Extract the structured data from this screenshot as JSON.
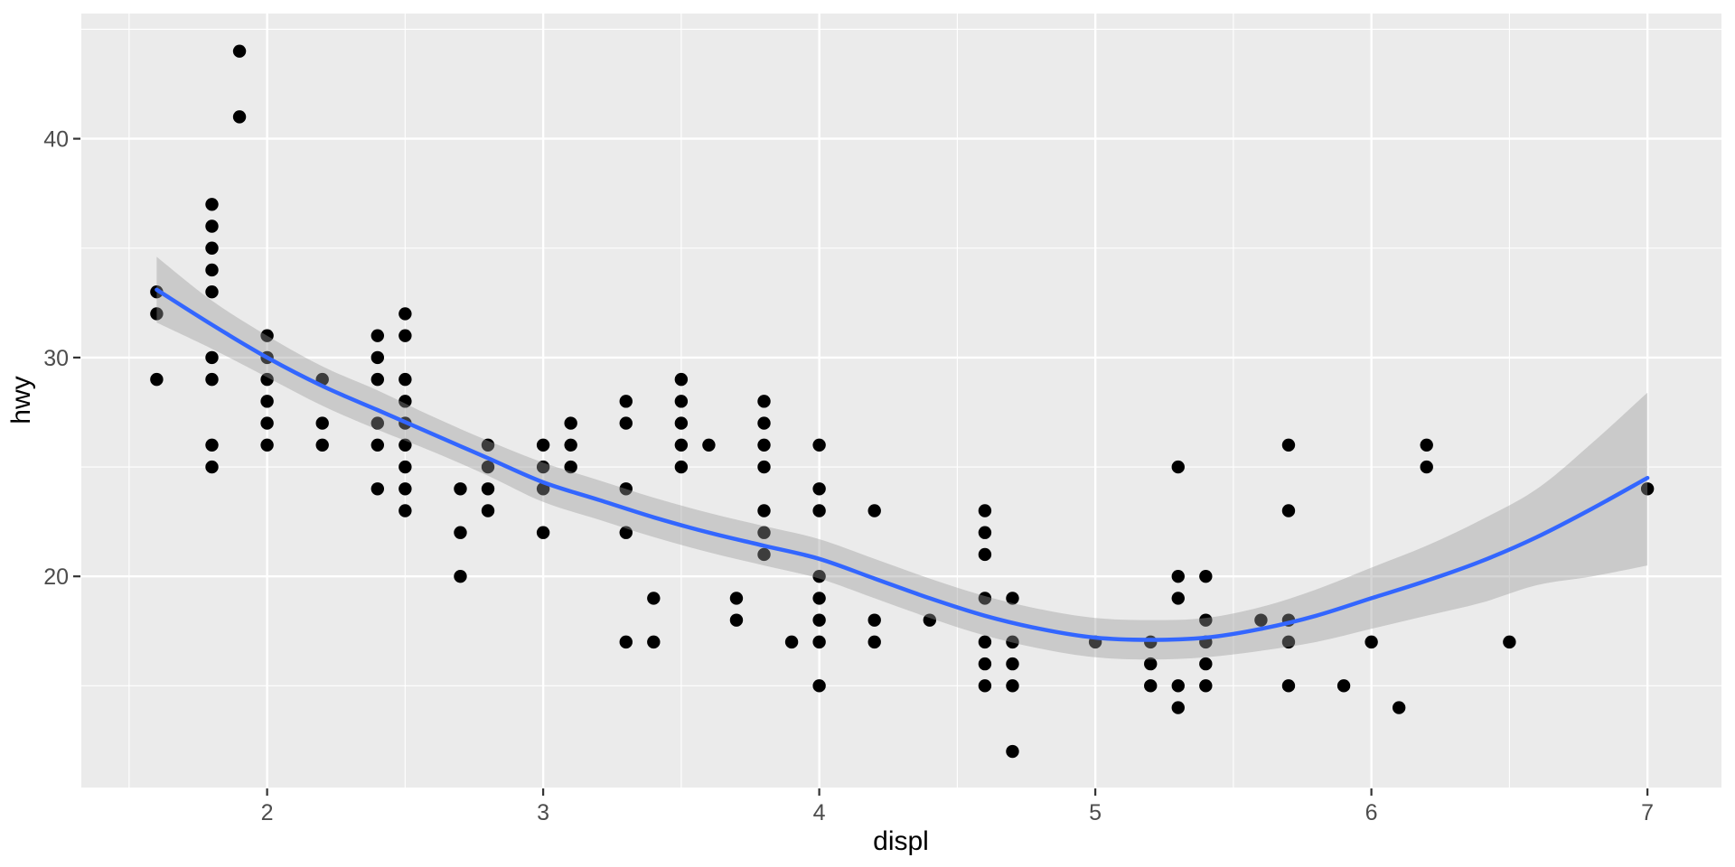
{
  "chart_data": {
    "type": "scatter",
    "title": "",
    "xlabel": "displ",
    "ylabel": "hwy",
    "x_ticks": [
      2,
      3,
      4,
      5,
      6,
      7
    ],
    "y_ticks": [
      20,
      30,
      40
    ],
    "x_minor_ticks": [
      1.5,
      2.5,
      3.5,
      4.5,
      5.5,
      6.5
    ],
    "y_minor_ticks": [
      15,
      25,
      35,
      45
    ],
    "xlim": [
      1.327,
      7.268
    ],
    "ylim": [
      10.35,
      45.72
    ],
    "grid": "on",
    "legend": "none",
    "points": [
      [
        1.6,
        33
      ],
      [
        1.6,
        32
      ],
      [
        1.6,
        29
      ],
      [
        1.8,
        37
      ],
      [
        1.8,
        36
      ],
      [
        1.8,
        35
      ],
      [
        1.8,
        34
      ],
      [
        1.8,
        33
      ],
      [
        1.8,
        30
      ],
      [
        1.8,
        29
      ],
      [
        1.8,
        26
      ],
      [
        1.8,
        25
      ],
      [
        1.9,
        44
      ],
      [
        1.9,
        41
      ],
      [
        2.0,
        31
      ],
      [
        2.0,
        30
      ],
      [
        2.0,
        29
      ],
      [
        2.0,
        28
      ],
      [
        2.0,
        27
      ],
      [
        2.0,
        26
      ],
      [
        2.2,
        29
      ],
      [
        2.2,
        27
      ],
      [
        2.2,
        26
      ],
      [
        2.4,
        31
      ],
      [
        2.4,
        30
      ],
      [
        2.4,
        29
      ],
      [
        2.4,
        27
      ],
      [
        2.4,
        26
      ],
      [
        2.4,
        24
      ],
      [
        2.5,
        32
      ],
      [
        2.5,
        31
      ],
      [
        2.5,
        29
      ],
      [
        2.5,
        28
      ],
      [
        2.5,
        27
      ],
      [
        2.5,
        26
      ],
      [
        2.5,
        25
      ],
      [
        2.5,
        24
      ],
      [
        2.5,
        23
      ],
      [
        2.7,
        24
      ],
      [
        2.7,
        22
      ],
      [
        2.7,
        20
      ],
      [
        2.8,
        26
      ],
      [
        2.8,
        25
      ],
      [
        2.8,
        24
      ],
      [
        2.8,
        23
      ],
      [
        3.0,
        26
      ],
      [
        3.0,
        25
      ],
      [
        3.0,
        24
      ],
      [
        3.0,
        22
      ],
      [
        3.1,
        27
      ],
      [
        3.1,
        26
      ],
      [
        3.1,
        25
      ],
      [
        3.3,
        28
      ],
      [
        3.3,
        27
      ],
      [
        3.3,
        24
      ],
      [
        3.3,
        22
      ],
      [
        3.3,
        17
      ],
      [
        3.4,
        19
      ],
      [
        3.4,
        17
      ],
      [
        3.5,
        29
      ],
      [
        3.5,
        28
      ],
      [
        3.5,
        27
      ],
      [
        3.5,
        26
      ],
      [
        3.5,
        25
      ],
      [
        3.6,
        26
      ],
      [
        3.7,
        19
      ],
      [
        3.7,
        18
      ],
      [
        3.8,
        28
      ],
      [
        3.8,
        27
      ],
      [
        3.8,
        26
      ],
      [
        3.8,
        25
      ],
      [
        3.8,
        23
      ],
      [
        3.8,
        22
      ],
      [
        3.8,
        21
      ],
      [
        3.9,
        17
      ],
      [
        4.0,
        26
      ],
      [
        4.0,
        24
      ],
      [
        4.0,
        23
      ],
      [
        4.0,
        20
      ],
      [
        4.0,
        19
      ],
      [
        4.0,
        18
      ],
      [
        4.0,
        17
      ],
      [
        4.0,
        15
      ],
      [
        4.2,
        23
      ],
      [
        4.2,
        18
      ],
      [
        4.2,
        17
      ],
      [
        4.4,
        18
      ],
      [
        4.6,
        23
      ],
      [
        4.6,
        22
      ],
      [
        4.6,
        21
      ],
      [
        4.6,
        19
      ],
      [
        4.6,
        17
      ],
      [
        4.6,
        16
      ],
      [
        4.6,
        15
      ],
      [
        4.7,
        19
      ],
      [
        4.7,
        17
      ],
      [
        4.7,
        16
      ],
      [
        4.7,
        15
      ],
      [
        4.7,
        12
      ],
      [
        5.0,
        17
      ],
      [
        5.2,
        17
      ],
      [
        5.2,
        16
      ],
      [
        5.2,
        15
      ],
      [
        5.3,
        25
      ],
      [
        5.3,
        20
      ],
      [
        5.3,
        19
      ],
      [
        5.3,
        15
      ],
      [
        5.3,
        14
      ],
      [
        5.4,
        20
      ],
      [
        5.4,
        18
      ],
      [
        5.4,
        17
      ],
      [
        5.4,
        16
      ],
      [
        5.4,
        15
      ],
      [
        5.6,
        18
      ],
      [
        5.7,
        26
      ],
      [
        5.7,
        23
      ],
      [
        5.7,
        18
      ],
      [
        5.7,
        17
      ],
      [
        5.7,
        15
      ],
      [
        5.9,
        15
      ],
      [
        6.0,
        17
      ],
      [
        6.1,
        14
      ],
      [
        6.2,
        26
      ],
      [
        6.2,
        25
      ],
      [
        6.5,
        17
      ],
      [
        7.0,
        24
      ]
    ],
    "smooth_line": [
      [
        1.6,
        33.1
      ],
      [
        1.8,
        31.5
      ],
      [
        2.0,
        30.0
      ],
      [
        2.2,
        28.7
      ],
      [
        2.4,
        27.6
      ],
      [
        2.6,
        26.5
      ],
      [
        2.8,
        25.4
      ],
      [
        3.0,
        24.3
      ],
      [
        3.2,
        23.5
      ],
      [
        3.4,
        22.7
      ],
      [
        3.6,
        22.0
      ],
      [
        3.8,
        21.4
      ],
      [
        4.0,
        20.8
      ],
      [
        4.2,
        19.9
      ],
      [
        4.4,
        19.0
      ],
      [
        4.6,
        18.2
      ],
      [
        4.8,
        17.6
      ],
      [
        5.0,
        17.2
      ],
      [
        5.2,
        17.1
      ],
      [
        5.4,
        17.2
      ],
      [
        5.6,
        17.6
      ],
      [
        5.8,
        18.2
      ],
      [
        6.0,
        19.0
      ],
      [
        6.2,
        19.8
      ],
      [
        6.4,
        20.7
      ],
      [
        6.6,
        21.8
      ],
      [
        6.8,
        23.1
      ],
      [
        7.0,
        24.5
      ]
    ],
    "ribbon_upper": [
      [
        1.6,
        34.6
      ],
      [
        1.8,
        32.6
      ],
      [
        2.0,
        31.0
      ],
      [
        2.2,
        29.6
      ],
      [
        2.4,
        28.5
      ],
      [
        2.6,
        27.3
      ],
      [
        2.8,
        26.2
      ],
      [
        3.0,
        25.2
      ],
      [
        3.2,
        24.4
      ],
      [
        3.4,
        23.6
      ],
      [
        3.6,
        22.9
      ],
      [
        3.8,
        22.3
      ],
      [
        4.0,
        21.7
      ],
      [
        4.2,
        20.8
      ],
      [
        4.4,
        19.9
      ],
      [
        4.6,
        19.1
      ],
      [
        4.8,
        18.5
      ],
      [
        5.0,
        18.1
      ],
      [
        5.2,
        18.0
      ],
      [
        5.4,
        18.1
      ],
      [
        5.6,
        18.6
      ],
      [
        5.8,
        19.4
      ],
      [
        6.0,
        20.4
      ],
      [
        6.2,
        21.4
      ],
      [
        6.4,
        22.6
      ],
      [
        6.6,
        24.0
      ],
      [
        6.8,
        26.1
      ],
      [
        7.0,
        28.4
      ]
    ],
    "ribbon_lower": [
      [
        1.6,
        31.6
      ],
      [
        1.8,
        30.4
      ],
      [
        2.0,
        29.1
      ],
      [
        2.2,
        27.8
      ],
      [
        2.4,
        26.7
      ],
      [
        2.6,
        25.7
      ],
      [
        2.8,
        24.6
      ],
      [
        3.0,
        23.4
      ],
      [
        3.2,
        22.6
      ],
      [
        3.4,
        21.8
      ],
      [
        3.6,
        21.1
      ],
      [
        3.8,
        20.5
      ],
      [
        4.0,
        19.9
      ],
      [
        4.2,
        19.0
      ],
      [
        4.4,
        18.1
      ],
      [
        4.6,
        17.3
      ],
      [
        4.8,
        16.7
      ],
      [
        5.0,
        16.3
      ],
      [
        5.2,
        16.2
      ],
      [
        5.4,
        16.3
      ],
      [
        5.6,
        16.6
      ],
      [
        5.8,
        17.0
      ],
      [
        6.0,
        17.6
      ],
      [
        6.2,
        18.2
      ],
      [
        6.4,
        18.8
      ],
      [
        6.6,
        19.6
      ],
      [
        6.8,
        20.0
      ],
      [
        7.0,
        20.5
      ]
    ],
    "colors": {
      "page_background": "#FFFFFF",
      "panel_background": "#EBEBEB",
      "grid_major": "#FFFFFF",
      "grid_minor": "#FFFFFF",
      "point": "#000000",
      "smooth_line": "#3366FF",
      "ribbon": "#999999",
      "ribbon_opacity": 0.4,
      "tick_mark": "#333333",
      "tick_label": "#4D4D4D",
      "axis_title": "#000000"
    }
  }
}
